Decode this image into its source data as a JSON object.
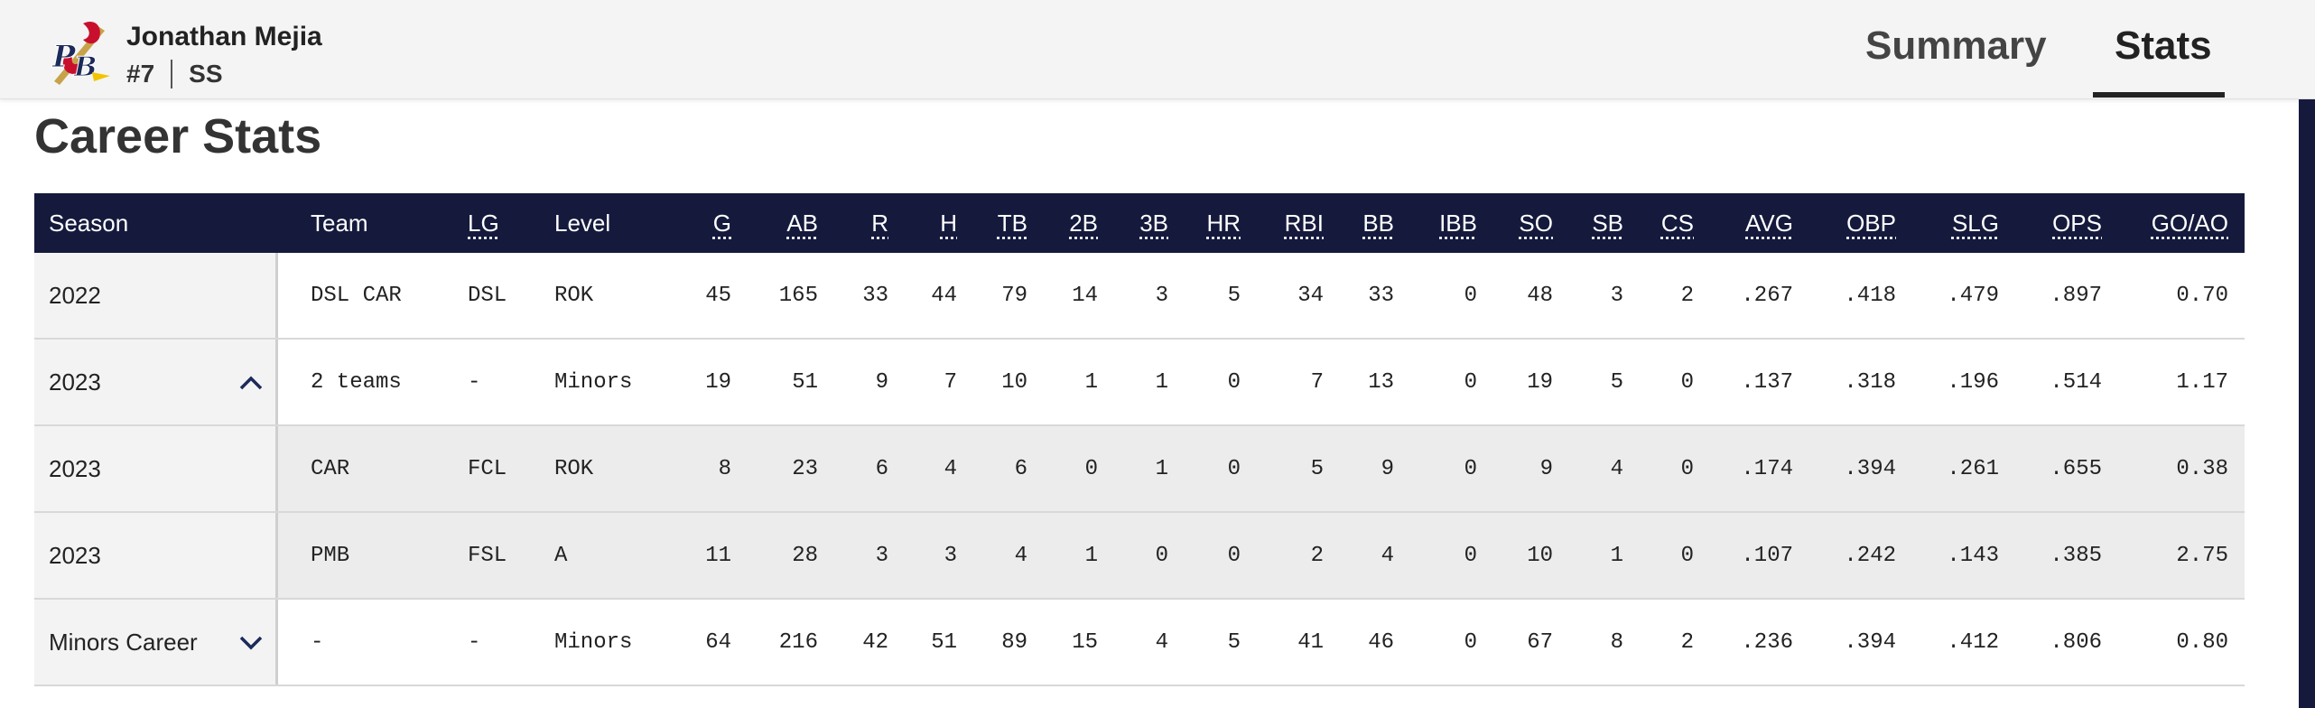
{
  "player": {
    "name": "Jonathan Mejia",
    "number": "#7",
    "position": "SS",
    "logo_icon": "team-logo-pb-birds-on-bat"
  },
  "tabs": [
    {
      "label": "Summary",
      "active": false
    },
    {
      "label": "Stats",
      "active": true
    }
  ],
  "section_title": "Career Stats",
  "colors": {
    "header_bg": "#f4f4f4",
    "table_header_bg": "#151a3d",
    "row_grey": "#ececec"
  },
  "table": {
    "headers": [
      "Season",
      "Team",
      "LG",
      "Level",
      "G",
      "AB",
      "R",
      "H",
      "TB",
      "2B",
      "3B",
      "HR",
      "RBI",
      "BB",
      "IBB",
      "SO",
      "SB",
      "CS",
      "AVG",
      "OBP",
      "SLG",
      "OPS",
      "GO/AO"
    ],
    "rows": [
      {
        "season": "2022",
        "chevron": "",
        "cells": [
          "DSL CAR",
          "DSL",
          "ROK",
          "45",
          "165",
          "33",
          "44",
          "79",
          "14",
          "3",
          "5",
          "34",
          "33",
          "0",
          "48",
          "3",
          "2",
          ".267",
          ".418",
          ".479",
          ".897",
          "0.70"
        ]
      },
      {
        "season": "2023",
        "chevron": "up",
        "cells": [
          "2 teams",
          "-",
          "Minors",
          "19",
          "51",
          "9",
          "7",
          "10",
          "1",
          "1",
          "0",
          "7",
          "13",
          "0",
          "19",
          "5",
          "0",
          ".137",
          ".318",
          ".196",
          ".514",
          "1.17"
        ]
      },
      {
        "season": "2023",
        "chevron": "",
        "cells": [
          "CAR",
          "FCL",
          "ROK",
          "8",
          "23",
          "6",
          "4",
          "6",
          "0",
          "1",
          "0",
          "5",
          "9",
          "0",
          "9",
          "4",
          "0",
          ".174",
          ".394",
          ".261",
          ".655",
          "0.38"
        ]
      },
      {
        "season": "2023",
        "chevron": "",
        "cells": [
          "PMB",
          "FSL",
          "A",
          "11",
          "28",
          "3",
          "3",
          "4",
          "1",
          "0",
          "0",
          "2",
          "4",
          "0",
          "10",
          "1",
          "0",
          ".107",
          ".242",
          ".143",
          ".385",
          "2.75"
        ]
      },
      {
        "season": "Minors Career",
        "chevron": "down",
        "cells": [
          "-",
          "-",
          "Minors",
          "64",
          "216",
          "42",
          "51",
          "89",
          "15",
          "4",
          "5",
          "41",
          "46",
          "0",
          "67",
          "8",
          "2",
          ".236",
          ".394",
          ".412",
          ".806",
          "0.80"
        ]
      }
    ]
  }
}
